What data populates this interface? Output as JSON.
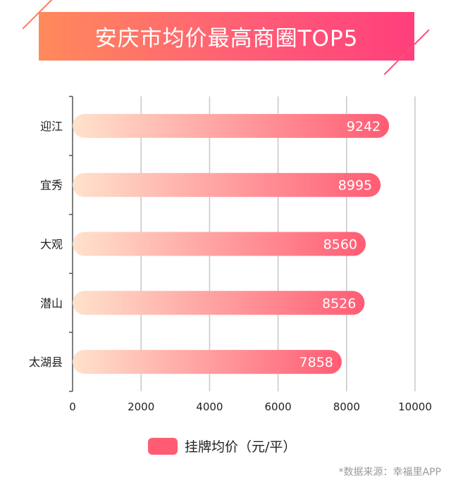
{
  "title": "安庆市均价最高商圈TOP5",
  "legend_label": "挂牌均价（元/平）",
  "source": "*数据来源：幸福里APP",
  "colors": {
    "banner_start": "#ff8a5b",
    "banner_end": "#ff3f7b",
    "bar_start": "#ffe2cc",
    "bar_end": "#ff5c74",
    "legend": "#ff5c74",
    "grid": "#c8c8c8",
    "axis": "#555555"
  },
  "chart_data": {
    "type": "bar",
    "orientation": "horizontal",
    "title": "安庆市均价最高商圈TOP5",
    "categories": [
      "迎江",
      "宜秀",
      "大观",
      "潜山",
      "太湖县"
    ],
    "series": [
      {
        "name": "挂牌均价（元/平）",
        "values": [
          9242,
          8995,
          8560,
          8526,
          7858
        ]
      }
    ],
    "xlim": [
      0,
      10000
    ],
    "xticks": [
      0,
      2000,
      4000,
      6000,
      8000,
      10000
    ],
    "grid": true,
    "data_labels": true,
    "legend_position": "bottom"
  }
}
